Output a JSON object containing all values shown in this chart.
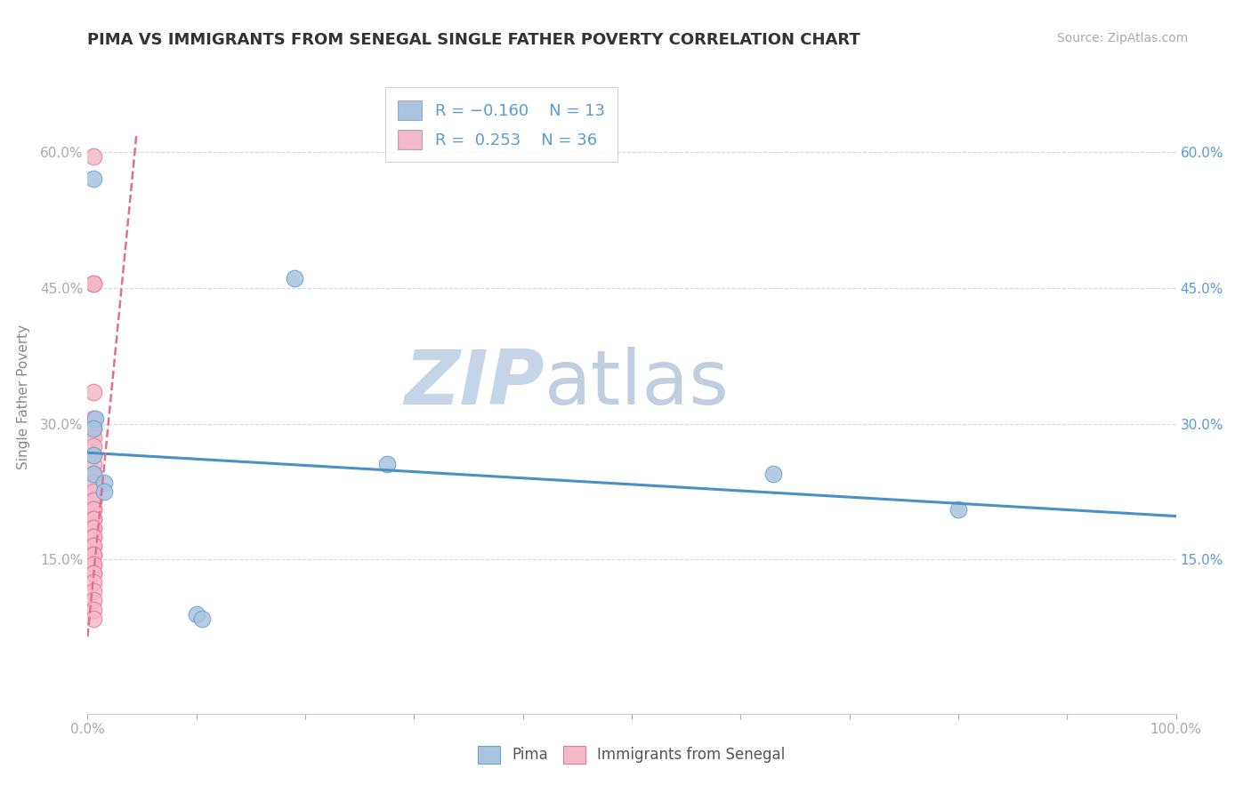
{
  "title": "PIMA VS IMMIGRANTS FROM SENEGAL SINGLE FATHER POVERTY CORRELATION CHART",
  "source_text": "Source: ZipAtlas.com",
  "ylabel": "Single Father Poverty",
  "xlim": [
    0.0,
    1.0
  ],
  "ylim": [
    -0.02,
    0.68
  ],
  "yticks": [
    0.15,
    0.3,
    0.45,
    0.6
  ],
  "ytick_labels": [
    "15.0%",
    "30.0%",
    "45.0%",
    "60.0%"
  ],
  "right_ytick_labels": [
    "15.0%",
    "30.0%",
    "45.0%",
    "60.0%"
  ],
  "xtick_vals": [
    0.0,
    0.1,
    0.2,
    0.3,
    0.4,
    0.5,
    0.6,
    0.7,
    0.8,
    0.9,
    1.0
  ],
  "pima_color": "#a8c4e0",
  "pima_edge_color": "#6aa3cc",
  "senegal_color": "#f4b8c8",
  "senegal_edge_color": "#e87a9a",
  "pima_R": -0.16,
  "pima_N": 13,
  "senegal_R": 0.253,
  "senegal_N": 36,
  "legend_box_pima_color": "#a8c4e0",
  "legend_box_senegal_color": "#f4b8c8",
  "pima_scatter_x": [
    0.005,
    0.007,
    0.005,
    0.005,
    0.005,
    0.015,
    0.015,
    0.63,
    0.8,
    0.1,
    0.105,
    0.19,
    0.275
  ],
  "pima_scatter_y": [
    0.57,
    0.305,
    0.295,
    0.265,
    0.245,
    0.235,
    0.225,
    0.245,
    0.205,
    0.09,
    0.085,
    0.46,
    0.255
  ],
  "senegal_scatter_x": [
    0.005,
    0.005,
    0.005,
    0.005,
    0.005,
    0.005,
    0.005,
    0.005,
    0.005,
    0.005,
    0.005,
    0.005,
    0.005,
    0.005,
    0.005,
    0.005,
    0.005,
    0.005,
    0.005,
    0.005,
    0.005,
    0.005,
    0.005,
    0.005,
    0.005,
    0.005,
    0.005,
    0.005,
    0.005,
    0.005,
    0.005,
    0.005,
    0.005,
    0.005,
    0.005,
    0.005
  ],
  "senegal_scatter_y": [
    0.595,
    0.455,
    0.455,
    0.335,
    0.305,
    0.295,
    0.285,
    0.275,
    0.265,
    0.255,
    0.245,
    0.235,
    0.225,
    0.215,
    0.215,
    0.205,
    0.205,
    0.195,
    0.195,
    0.185,
    0.185,
    0.175,
    0.175,
    0.165,
    0.165,
    0.155,
    0.155,
    0.145,
    0.145,
    0.135,
    0.135,
    0.125,
    0.115,
    0.105,
    0.095,
    0.085
  ],
  "pima_trend_x": [
    0.0,
    1.0
  ],
  "pima_trend_y": [
    0.268,
    0.198
  ],
  "senegal_trend_x_start": 0.0,
  "senegal_trend_x_end": 0.045,
  "senegal_trend_y_start": 0.065,
  "senegal_trend_y_end": 0.62,
  "grid_color": "#d0d8e8",
  "background_color": "#ffffff",
  "watermark_zip": "ZIP",
  "watermark_atlas": "atlas",
  "watermark_color_zip": "#c5d5e8",
  "watermark_color_atlas": "#c0cfe0"
}
